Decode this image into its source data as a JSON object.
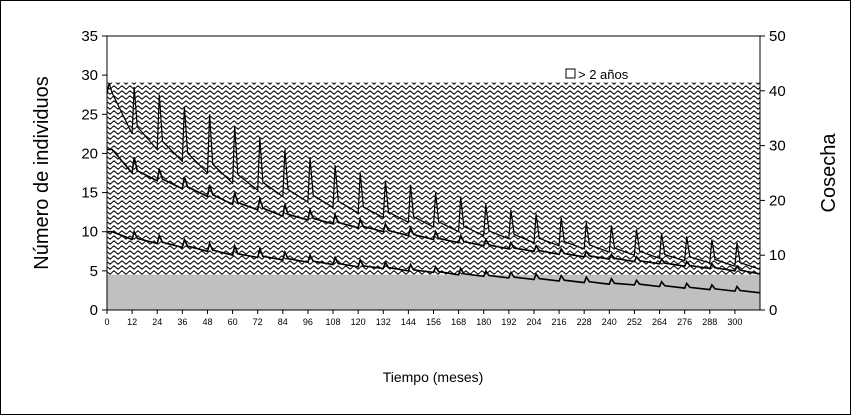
{
  "chart_data": {
    "type": "area",
    "xlabel": "Tiempo (meses)",
    "ylabel_left": "Número de individuos",
    "ylabel_right": "Cosecha",
    "ylim_left": [
      0,
      35
    ],
    "ylim_right": [
      0,
      50
    ],
    "xlim": [
      0,
      312
    ],
    "yticks_left": [
      0,
      5,
      10,
      15,
      20,
      25,
      30,
      35
    ],
    "yticks_right": [
      0,
      10,
      20,
      30,
      40,
      50
    ],
    "xticks": [
      0,
      12,
      24,
      36,
      48,
      60,
      72,
      84,
      96,
      108,
      120,
      132,
      144,
      156,
      168,
      180,
      192,
      204,
      216,
      228,
      240,
      252,
      264,
      276,
      288,
      300
    ],
    "grid": false,
    "legend_position": "top-right",
    "legend": [
      {
        "label": "> 2 años",
        "swatch": "#ffffff"
      }
    ],
    "colors": {
      "grey_fill": "#c0c0c0",
      "pattern_ink": "#000000",
      "line": "#000000"
    },
    "cosecha_area": {
      "axis": "right",
      "x": [
        0,
        312
      ],
      "y": [
        41.5,
        41.5
      ]
    },
    "grey_area": {
      "axis": "left",
      "x": [
        0,
        312
      ],
      "y": [
        4.5,
        4.5
      ]
    },
    "series": [
      {
        "axis": "left",
        "pulse_period": 12,
        "x": [
          0,
          12,
          24,
          36,
          48,
          60,
          72,
          84,
          96,
          108,
          120,
          132,
          144,
          156,
          168,
          180,
          192,
          204,
          216,
          228,
          240,
          252,
          264,
          276,
          288,
          300,
          312
        ],
        "baseline": [
          27.5,
          22.5,
          20.5,
          19.0,
          17.5,
          16.2,
          15.3,
          14.5,
          13.8,
          13.1,
          12.4,
          11.8,
          11.2,
          10.6,
          10.0,
          9.5,
          9.1,
          8.6,
          8.2,
          7.8,
          7.4,
          7.0,
          6.6,
          6.3,
          6.0,
          5.6,
          5.2
        ],
        "peak": [
          29.0,
          28.5,
          27.5,
          26.0,
          25.0,
          23.5,
          22.0,
          20.5,
          19.5,
          18.5,
          17.5,
          16.5,
          16.0,
          15.0,
          14.5,
          13.5,
          12.8,
          12.3,
          11.8,
          11.2,
          10.8,
          10.3,
          9.8,
          9.4,
          9.0,
          8.6,
          8.0
        ]
      },
      {
        "axis": "left",
        "pulse_period": 12,
        "x": [
          0,
          12,
          24,
          36,
          48,
          60,
          72,
          84,
          96,
          108,
          120,
          132,
          144,
          156,
          168,
          180,
          192,
          204,
          216,
          228,
          240,
          252,
          264,
          276,
          288,
          300,
          312
        ],
        "baseline": [
          20.5,
          17.5,
          16.5,
          15.5,
          14.5,
          13.5,
          12.8,
          12.0,
          11.5,
          11.0,
          10.5,
          10.0,
          9.5,
          9.0,
          8.6,
          8.2,
          7.8,
          7.5,
          7.1,
          6.8,
          6.5,
          6.2,
          5.9,
          5.6,
          5.3,
          5.0,
          4.6
        ],
        "peak": [
          20.5,
          19.5,
          18.0,
          17.0,
          16.0,
          15.0,
          14.2,
          13.5,
          12.8,
          12.2,
          11.6,
          11.0,
          10.5,
          10.0,
          9.5,
          9.0,
          8.6,
          8.2,
          7.8,
          7.5,
          7.1,
          6.8,
          6.5,
          6.2,
          5.9,
          5.6,
          5.2
        ]
      },
      {
        "axis": "left",
        "pulse_period": 12,
        "x": [
          0,
          12,
          24,
          36,
          48,
          60,
          72,
          84,
          96,
          108,
          120,
          132,
          144,
          156,
          168,
          180,
          192,
          204,
          216,
          228,
          240,
          252,
          264,
          276,
          288,
          300,
          312
        ],
        "baseline": [
          10.0,
          9.0,
          8.5,
          8.0,
          7.5,
          7.0,
          6.7,
          6.4,
          6.1,
          5.8,
          5.5,
          5.3,
          5.0,
          4.8,
          4.5,
          4.3,
          4.1,
          3.9,
          3.7,
          3.5,
          3.3,
          3.2,
          3.0,
          2.8,
          2.6,
          2.4,
          2.2
        ],
        "peak": [
          10.0,
          10.0,
          9.5,
          9.0,
          8.5,
          8.2,
          7.8,
          7.4,
          7.0,
          6.7,
          6.4,
          6.1,
          5.8,
          5.5,
          5.3,
          5.0,
          4.8,
          4.6,
          4.4,
          4.2,
          4.0,
          3.8,
          3.6,
          3.4,
          3.2,
          3.0,
          2.8
        ]
      }
    ]
  }
}
